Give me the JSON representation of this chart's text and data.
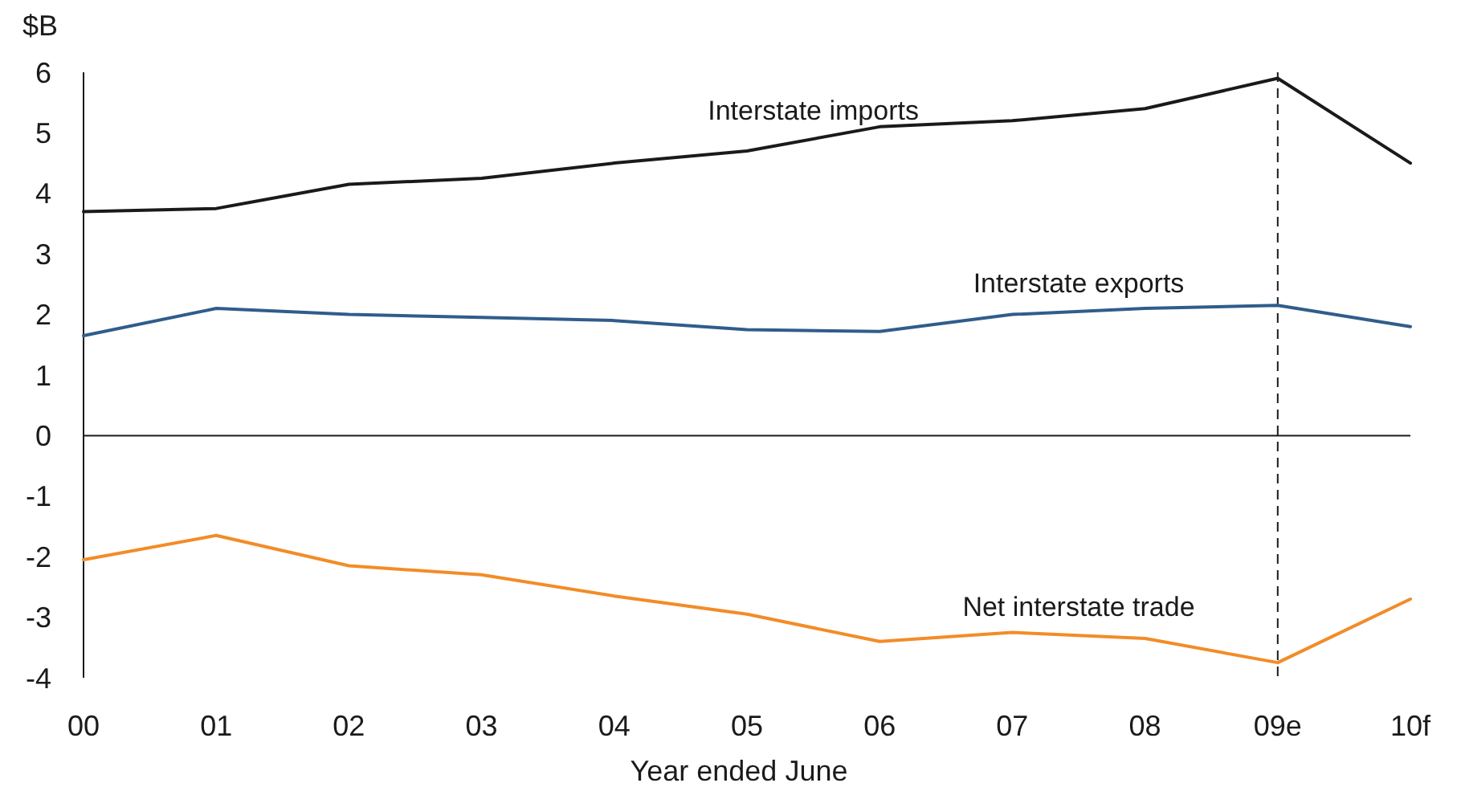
{
  "chart_data": {
    "type": "line",
    "ylabel": "$B",
    "xlabel": "Year ended June",
    "categories": [
      "00",
      "01",
      "02",
      "03",
      "04",
      "05",
      "06",
      "07",
      "08",
      "09e",
      "10f"
    ],
    "series": [
      {
        "name": "Interstate imports",
        "color": "#1a1a1a",
        "values": [
          3.7,
          3.75,
          4.15,
          4.25,
          4.5,
          4.7,
          5.1,
          5.2,
          5.4,
          5.9,
          4.5
        ]
      },
      {
        "name": "Interstate exports",
        "color": "#2f5d8c",
        "values": [
          1.65,
          2.1,
          2.0,
          1.95,
          1.9,
          1.75,
          1.72,
          2.0,
          2.1,
          2.15,
          1.8
        ]
      },
      {
        "name": "Net interstate trade",
        "color": "#f28c28",
        "values": [
          -2.05,
          -1.65,
          -2.15,
          -2.3,
          -2.65,
          -2.95,
          -3.4,
          -3.25,
          -3.35,
          -3.75,
          -2.7
        ]
      }
    ],
    "ylim": [
      -4,
      6
    ],
    "yticks": [
      -4,
      -3,
      -2,
      -1,
      0,
      1,
      2,
      3,
      4,
      5,
      6
    ],
    "ref_lines": [
      {
        "axis": "x",
        "value": "09e",
        "line_style": "dashed",
        "color": "#1a1a1a"
      }
    ],
    "grid": false,
    "line_style": "solid",
    "marker": "none"
  }
}
